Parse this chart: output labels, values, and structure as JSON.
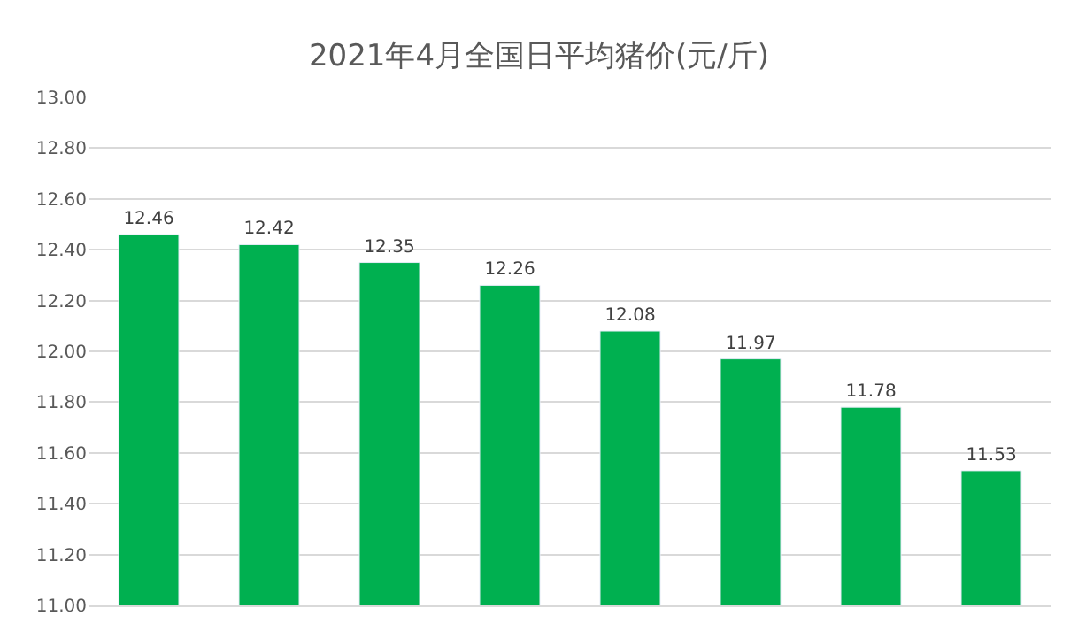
{
  "chart_data": {
    "type": "bar",
    "title": "2021年4月全国日平均猪价(元/斤)",
    "categories": [
      null,
      null,
      null,
      null,
      null,
      null,
      null,
      null
    ],
    "values": [
      12.46,
      12.42,
      12.35,
      12.26,
      12.08,
      11.97,
      11.78,
      11.53
    ],
    "color": "#00b050",
    "ylim": [
      11.0,
      13.0
    ],
    "yticks": [
      {
        "value": 11.0,
        "label": "11.00"
      },
      {
        "value": 11.2,
        "label": "11.20"
      },
      {
        "value": 11.4,
        "label": "11.40"
      },
      {
        "value": 11.6,
        "label": "11.60"
      },
      {
        "value": 11.8,
        "label": "11.80"
      },
      {
        "value": 12.0,
        "label": "12.00"
      },
      {
        "value": 12.2,
        "label": "12.20"
      },
      {
        "value": 12.4,
        "label": "12.40"
      },
      {
        "value": 12.6,
        "label": "12.60"
      },
      {
        "value": 12.8,
        "label": "12.80"
      },
      {
        "value": 13.0,
        "label": "13.00"
      }
    ],
    "grid": "y",
    "data_labels": true
  }
}
